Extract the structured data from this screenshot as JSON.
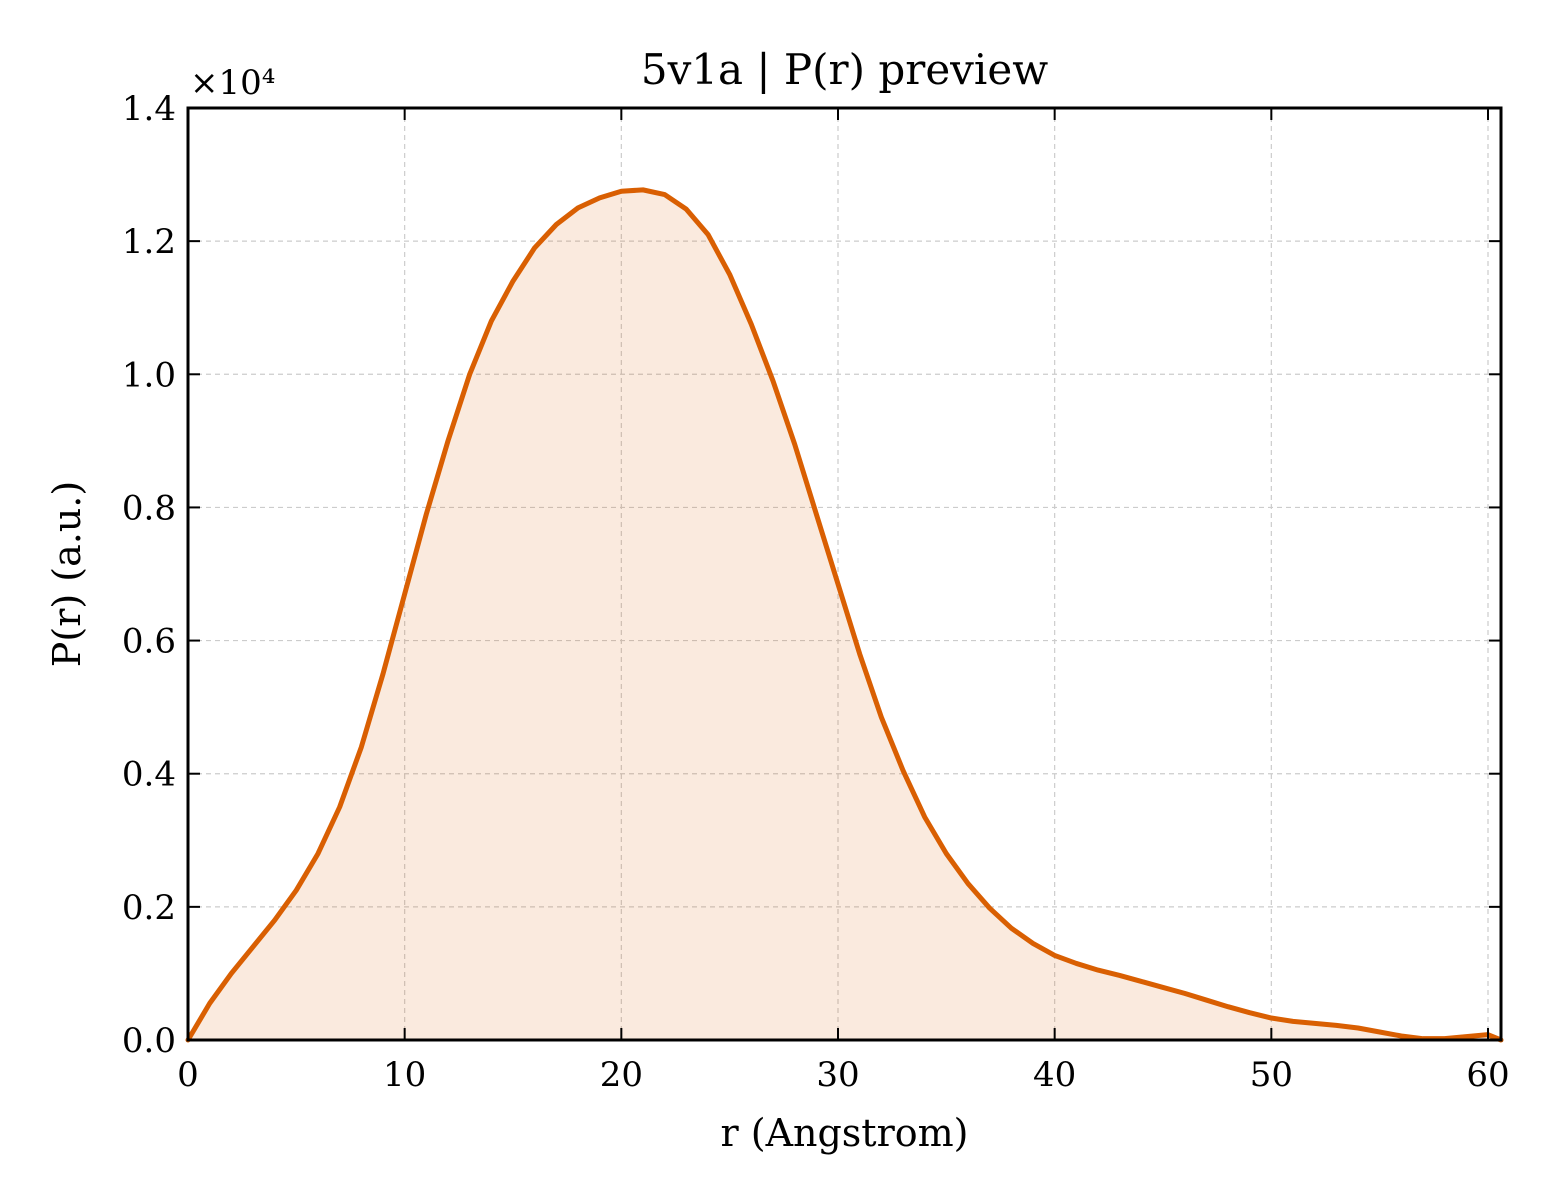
{
  "chart_data": {
    "type": "area",
    "title": "5v1a | P(r) preview",
    "xlabel": "r (Angstrom)",
    "ylabel": "P(r) (a.u.)",
    "y_multiplier_label": "×10⁴",
    "y_scale_factor": 10000,
    "xlim": [
      0,
      60.6
    ],
    "ylim": [
      0,
      1.4
    ],
    "x_ticks": [
      0,
      10,
      20,
      30,
      40,
      50,
      60
    ],
    "x_tick_labels": [
      "0",
      "10",
      "20",
      "30",
      "40",
      "50",
      "60"
    ],
    "y_ticks": [
      0.0,
      0.2,
      0.4,
      0.6,
      0.8,
      1.0,
      1.2,
      1.4
    ],
    "y_tick_labels": [
      "0.0",
      "0.2",
      "0.4",
      "0.6",
      "0.8",
      "1.0",
      "1.2",
      "1.4"
    ],
    "grid": true,
    "series": [
      {
        "color": "#d95f02",
        "fill_color": "#d95f02",
        "fill_opacity": 0.13,
        "x": [
          0,
          1,
          2,
          3,
          4,
          5,
          6,
          7,
          8,
          9,
          10,
          11,
          12,
          13,
          14,
          15,
          16,
          17,
          18,
          19,
          20,
          21,
          22,
          23,
          24,
          25,
          26,
          27,
          28,
          29,
          30,
          31,
          32,
          33,
          34,
          35,
          36,
          37,
          38,
          39,
          40,
          41,
          42,
          43,
          44,
          45,
          46,
          47,
          48,
          49,
          50,
          51,
          52,
          53,
          54,
          55,
          56,
          57,
          58,
          59,
          60,
          60.6
        ],
        "y": [
          0.0,
          0.055,
          0.1,
          0.14,
          0.18,
          0.225,
          0.28,
          0.35,
          0.44,
          0.55,
          0.67,
          0.79,
          0.9,
          1.0,
          1.08,
          1.14,
          1.19,
          1.225,
          1.25,
          1.265,
          1.275,
          1.277,
          1.27,
          1.248,
          1.21,
          1.15,
          1.075,
          0.99,
          0.895,
          0.79,
          0.685,
          0.58,
          0.485,
          0.405,
          0.335,
          0.28,
          0.235,
          0.198,
          0.168,
          0.145,
          0.127,
          0.115,
          0.105,
          0.097,
          0.088,
          0.079,
          0.07,
          0.06,
          0.05,
          0.041,
          0.033,
          0.028,
          0.025,
          0.022,
          0.018,
          0.012,
          0.006,
          0.002,
          0.002,
          0.005,
          0.008,
          0.0
        ]
      }
    ]
  }
}
